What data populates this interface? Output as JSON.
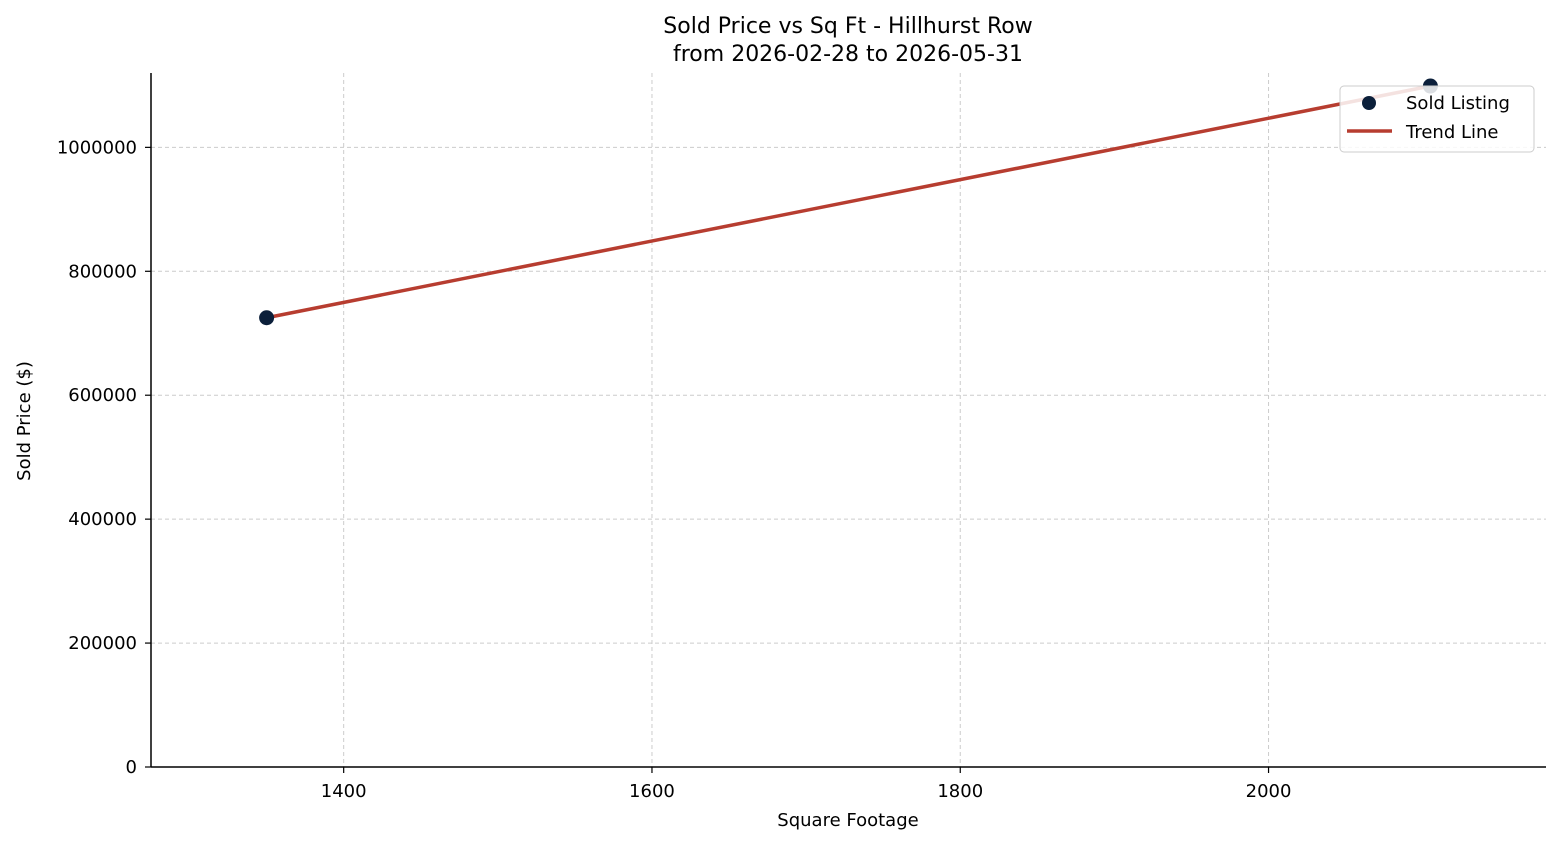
{
  "chart_data": {
    "type": "scatter",
    "title": "Sold Price vs Sq Ft - Hillhurst Row",
    "subtitle": "from 2026-02-28 to 2026-05-31",
    "xlabel": "Square Footage",
    "ylabel": "Sold Price ($)",
    "xlim": [
      1275,
      2180
    ],
    "ylim": [
      0,
      1120000
    ],
    "xticks": [
      1400,
      1600,
      1800,
      2000
    ],
    "yticks": [
      0,
      200000,
      400000,
      600000,
      800000,
      1000000
    ],
    "grid": true,
    "legend_position": "top-right",
    "series": [
      {
        "name": "Sold Listing",
        "kind": "scatter",
        "color": "#0b1f3a",
        "points": [
          {
            "x": 1350,
            "y": 725000
          },
          {
            "x": 2105,
            "y": 1099000
          }
        ]
      },
      {
        "name": "Trend Line",
        "kind": "line",
        "color": "#b73d30",
        "points": [
          {
            "x": 1350,
            "y": 725000
          },
          {
            "x": 2105,
            "y": 1099000
          }
        ]
      }
    ]
  }
}
